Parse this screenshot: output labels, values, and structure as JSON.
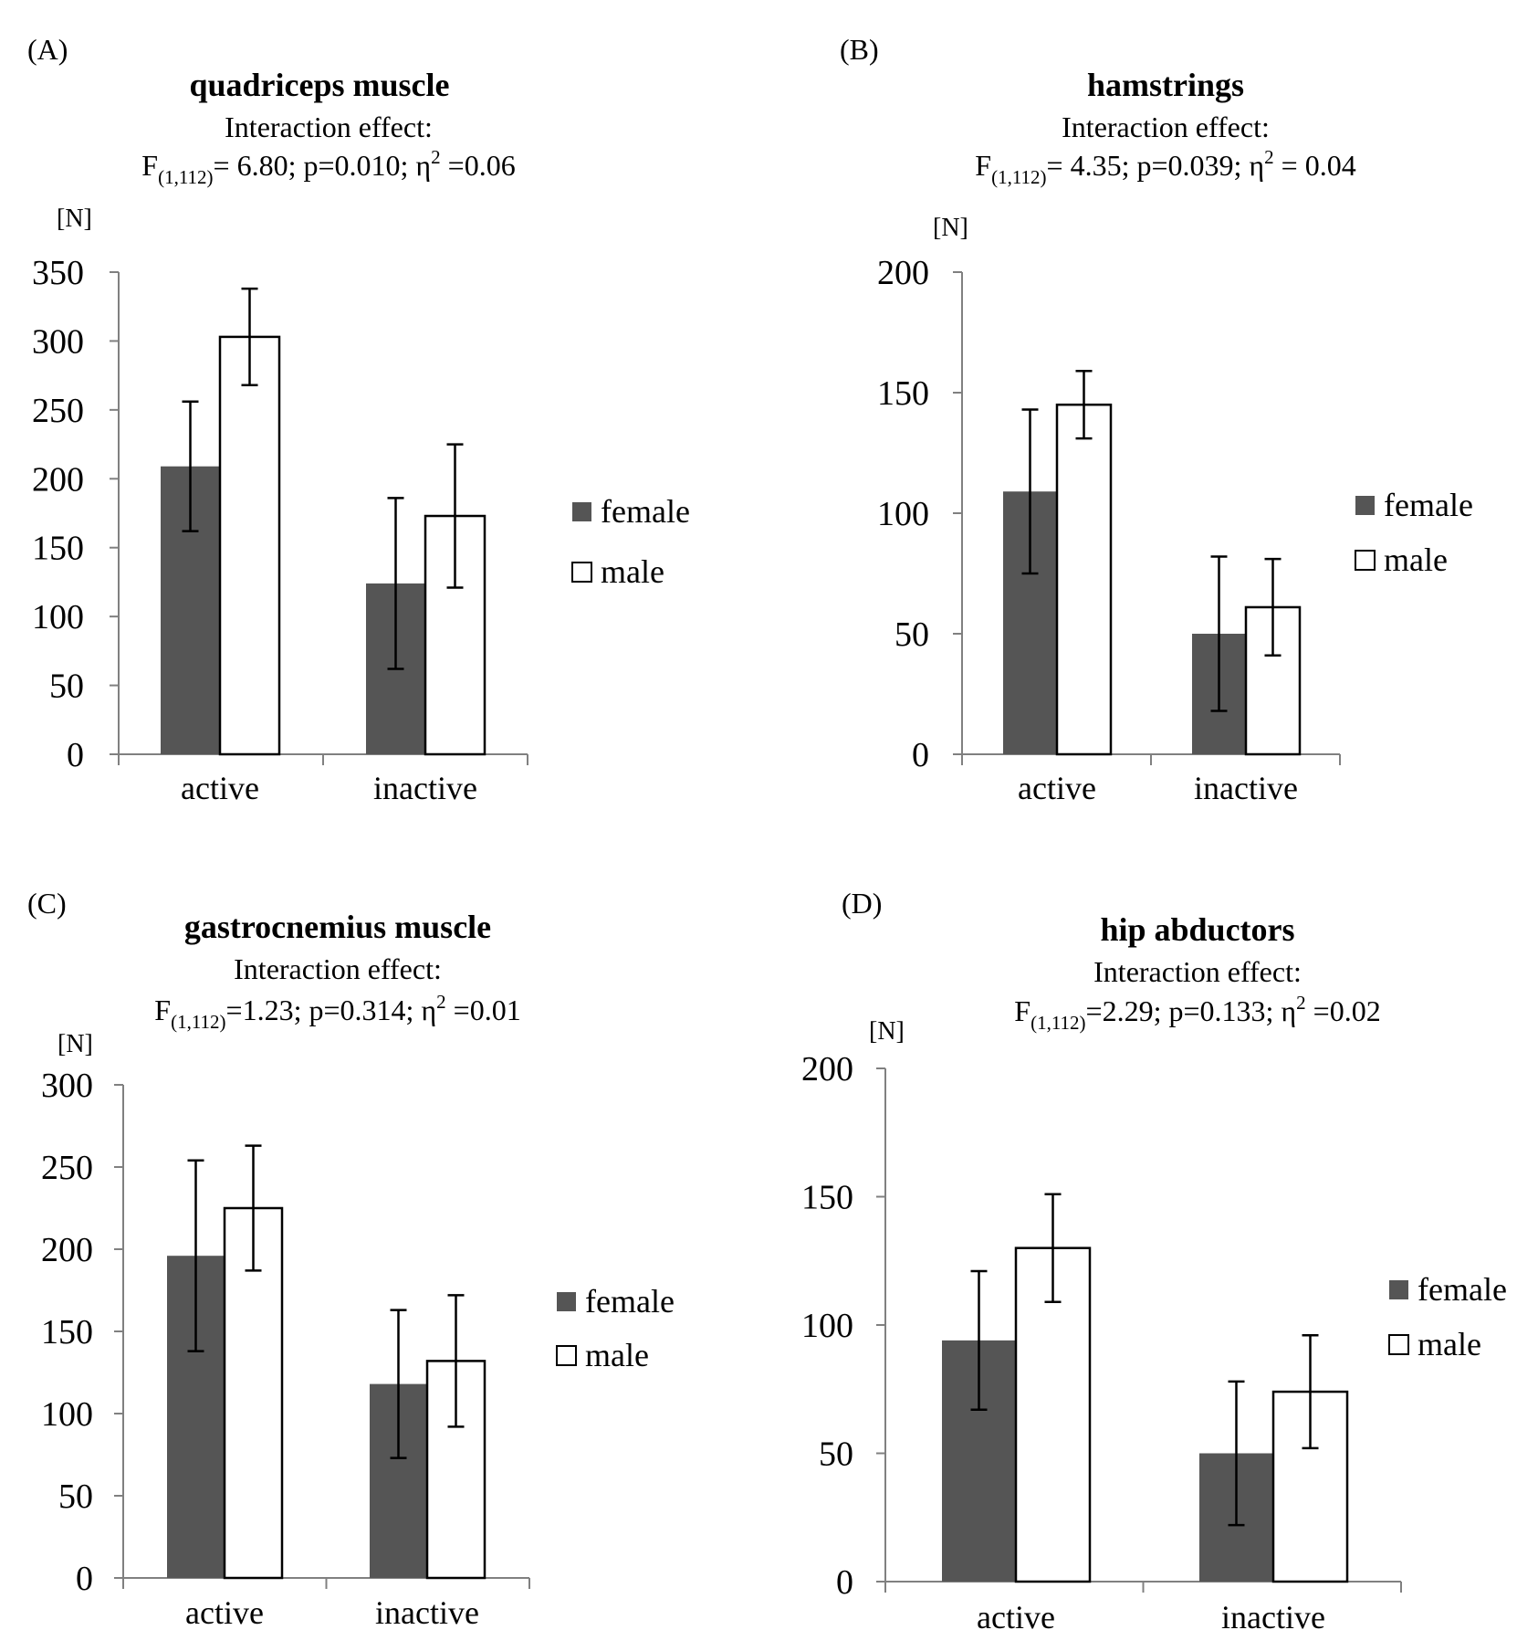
{
  "chart_data": [
    {
      "panel_label": "(A)",
      "type": "bar",
      "title": "quadriceps muscle",
      "subtitle": "Interaction effect:",
      "stat": {
        "prefix": "F",
        "sub": "(1,112)",
        "text1": "= 6.80; p=0.010; η",
        "sup": "2",
        "text2": " =0.06"
      },
      "unit": "[N]",
      "ylim": [
        0,
        350
      ],
      "yticks": [
        0,
        50,
        100,
        150,
        200,
        250,
        300,
        350
      ],
      "categories": [
        "active",
        "inactive"
      ],
      "series": [
        {
          "name": "female",
          "values": [
            209,
            124
          ],
          "errors": [
            47,
            62
          ]
        },
        {
          "name": "male",
          "values": [
            303,
            173
          ],
          "errors": [
            35,
            52
          ]
        }
      ],
      "legend": "right",
      "grid": false
    },
    {
      "panel_label": "(B)",
      "type": "bar",
      "title": "hamstrings",
      "subtitle": "Interaction effect:",
      "stat": {
        "prefix": "F",
        "sub": "(1,112)",
        "text1": "= 4.35; p=0.039; η",
        "sup": "2",
        "text2": " = 0.04"
      },
      "unit": "[N]",
      "ylim": [
        0,
        200
      ],
      "yticks": [
        0,
        50,
        100,
        150,
        200
      ],
      "categories": [
        "active",
        "inactive"
      ],
      "series": [
        {
          "name": "female",
          "values": [
            109,
            50
          ],
          "errors": [
            34,
            32
          ]
        },
        {
          "name": "male",
          "values": [
            145,
            61
          ],
          "errors": [
            14,
            20
          ]
        }
      ],
      "legend": "right",
      "grid": false
    },
    {
      "panel_label": "(C)",
      "type": "bar",
      "title": "gastrocnemius muscle",
      "subtitle": "Interaction effect:",
      "stat": {
        "prefix": "F",
        "sub": "(1,112)",
        "text1": "=1.23; p=0.314; η",
        "sup": "2",
        "text2": " =0.01"
      },
      "unit": "[N]",
      "ylim": [
        0,
        300
      ],
      "yticks": [
        0,
        50,
        100,
        150,
        200,
        250,
        300
      ],
      "categories": [
        "active",
        "inactive"
      ],
      "series": [
        {
          "name": "female",
          "values": [
            196,
            118
          ],
          "errors": [
            58,
            45
          ]
        },
        {
          "name": "male",
          "values": [
            225,
            132
          ],
          "errors": [
            38,
            40
          ]
        }
      ],
      "legend": "right",
      "grid": false
    },
    {
      "panel_label": "(D)",
      "type": "bar",
      "title": "hip abductors",
      "subtitle": "Interaction effect:",
      "stat": {
        "prefix": "F",
        "sub": "(1,112)",
        "text1": "=2.29; p=0.133; η",
        "sup": "2",
        "text2": " =0.02"
      },
      "unit": "[N]",
      "ylim": [
        0,
        200
      ],
      "yticks": [
        0,
        50,
        100,
        150,
        200
      ],
      "categories": [
        "active",
        "inactive"
      ],
      "series": [
        {
          "name": "female",
          "values": [
            94,
            50
          ],
          "errors": [
            27,
            28
          ]
        },
        {
          "name": "male",
          "values": [
            130,
            74
          ],
          "errors": [
            21,
            22
          ]
        }
      ],
      "legend": "right",
      "grid": false
    }
  ],
  "colors": {
    "female": "#555555",
    "male": "#ffffff",
    "axis": "#808080",
    "stroke": "#000000"
  }
}
